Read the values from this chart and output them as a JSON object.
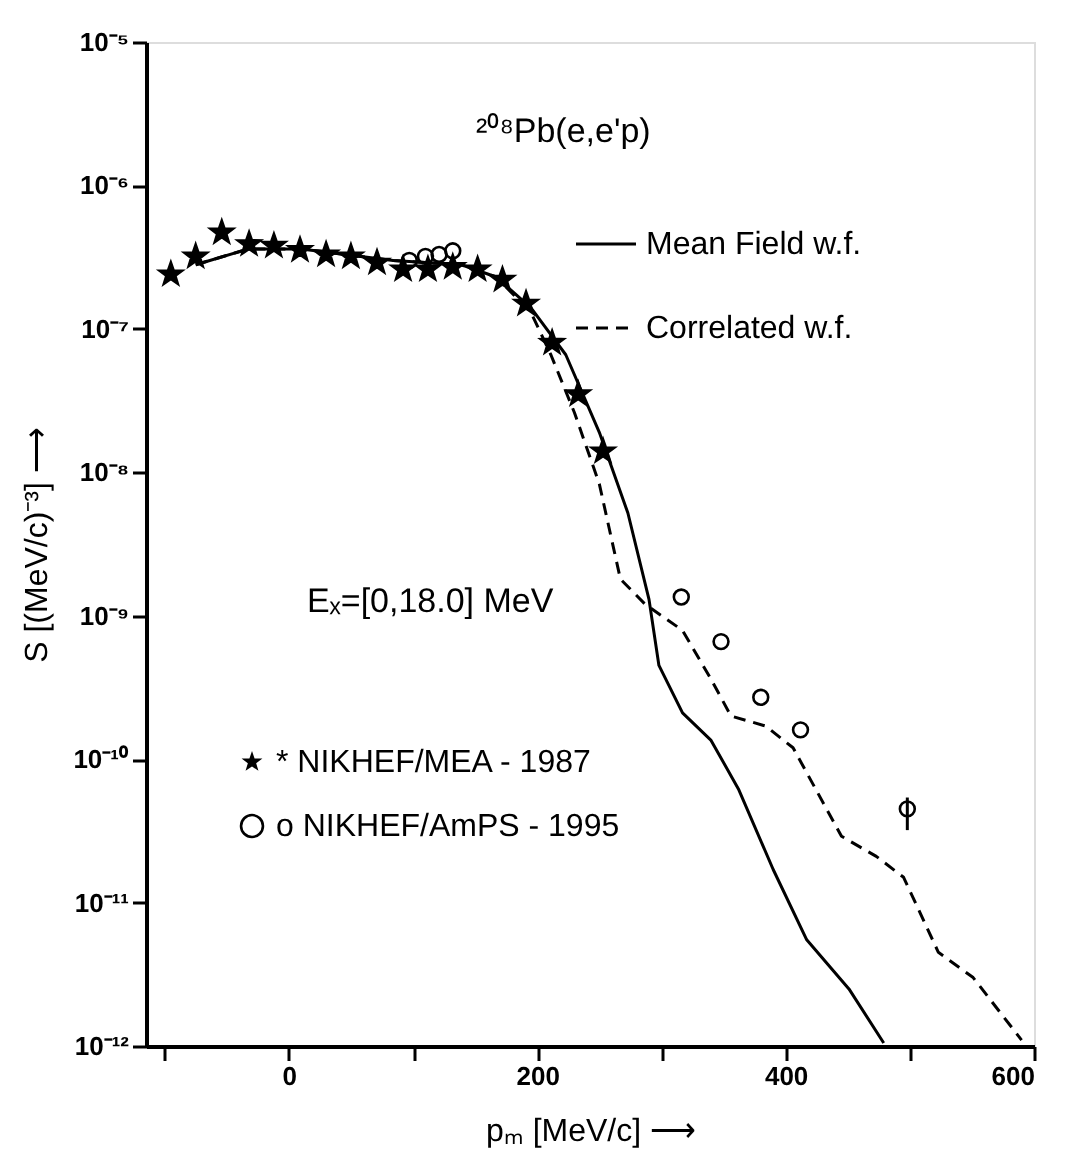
{
  "chart_data": {
    "type": "line",
    "xlabel": "pₘ [MeV/c] ⟶",
    "ylabel": "S [(MeV/c)⁻³] ⟶",
    "annotations": [
      "²⁰⁸Pb(e,e'p)",
      "Eₓ=[0,18.0] MeV"
    ],
    "log": "y",
    "grid": false,
    "legend": "top right",
    "xlim": [
      -115,
      600
    ],
    "ylim": [
      1e-12,
      1e-05
    ],
    "xticks": [
      {
        "value": -100,
        "label": null
      },
      0,
      {
        "value": 100,
        "label": null
      },
      200,
      {
        "value": 300,
        "label": null
      },
      400,
      {
        "value": 500,
        "label": null
      },
      600
    ],
    "yticks": [
      {
        "value": 1e-05,
        "label": "10⁻⁵"
      },
      {
        "value": 1e-06,
        "label": "10⁻⁶"
      },
      {
        "value": 1e-07,
        "label": "10⁻⁷"
      },
      {
        "value": 1e-08,
        "label": "10⁻⁸"
      },
      {
        "value": 1e-09,
        "label": "10⁻⁹"
      },
      {
        "value": 1e-10,
        "label": "10⁻¹⁰"
      },
      {
        "value": 1e-11,
        "label": "10⁻¹¹"
      },
      {
        "value": 1e-12,
        "label": "10⁻¹²"
      }
    ],
    "series": [
      {
        "name": "Mean Field w.f.",
        "type": "line",
        "line_style": "solid",
        "color": "#000000",
        "x": [
          -75,
          -33,
          10,
          84,
          139,
          167,
          195,
          223,
          250,
          273,
          290,
          298,
          317,
          340,
          362,
          390,
          417,
          451,
          479
        ],
        "values": [
          2.8e-07,
          3.6e-07,
          3.6e-07,
          3e-07,
          2.8e-07,
          2.3e-07,
          1.4e-07,
          6.6e-08,
          1.9e-08,
          5.2e-09,
          1.3e-09,
          4.5e-10,
          2.1e-10,
          1.35e-10,
          6.2e-11,
          1.7e-11,
          5.5e-12,
          2.5e-12,
          1.05e-12
        ]
      },
      {
        "name": "Correlated w.f.",
        "type": "line",
        "line_style": "dashed",
        "color": "#000000",
        "x": [
          -75,
          -33,
          10,
          84,
          139,
          167,
          195,
          211,
          230,
          250,
          267,
          287,
          317,
          340,
          356,
          384,
          406,
          445,
          473,
          495,
          523,
          551,
          590
        ],
        "values": [
          2.8e-07,
          3.6e-07,
          3.6e-07,
          3e-07,
          2.8e-07,
          2.3e-07,
          1.3e-07,
          6.6e-08,
          2.6e-08,
          8.3e-09,
          1.8e-09,
          1.2e-09,
          7.9e-10,
          3.6e-10,
          2e-10,
          1.7e-10,
          1.2e-10,
          2.9e-11,
          2.1e-11,
          1.5e-11,
          4.5e-12,
          3e-12,
          1.1e-12
        ]
      },
      {
        "name": "* NIKHEF/MEA  - 1987",
        "type": "scatter",
        "marker": "star",
        "color": "#000000",
        "x": [
          -95,
          -75,
          -54,
          -32,
          -12,
          9,
          30,
          50,
          71,
          92,
          112,
          132,
          152,
          172,
          191,
          212,
          233,
          253
        ],
        "values": [
          2.4e-07,
          3.2e-07,
          4.7e-07,
          3.9e-07,
          3.8e-07,
          3.55e-07,
          3.3e-07,
          3.2e-07,
          2.9e-07,
          2.6e-07,
          2.6e-07,
          2.7e-07,
          2.6e-07,
          2.2e-07,
          1.5e-07,
          8e-08,
          3.5e-08,
          1.4e-08
        ]
      },
      {
        "name": "o NIKHEF/AmPS - 1995",
        "type": "scatter",
        "marker": "circle",
        "color": "#000000",
        "x": [
          97,
          110,
          121,
          132,
          316,
          348,
          380,
          412,
          498
        ],
        "values": [
          3e-07,
          3.2e-07,
          3.3e-07,
          3.5e-07,
          1.35e-09,
          6.6e-10,
          2.7e-10,
          1.6e-10,
          4.5e-11
        ],
        "errors": [
          null,
          null,
          null,
          null,
          null,
          null,
          null,
          null,
          [
            3.2e-11,
            5.4e-11
          ]
        ]
      }
    ]
  }
}
